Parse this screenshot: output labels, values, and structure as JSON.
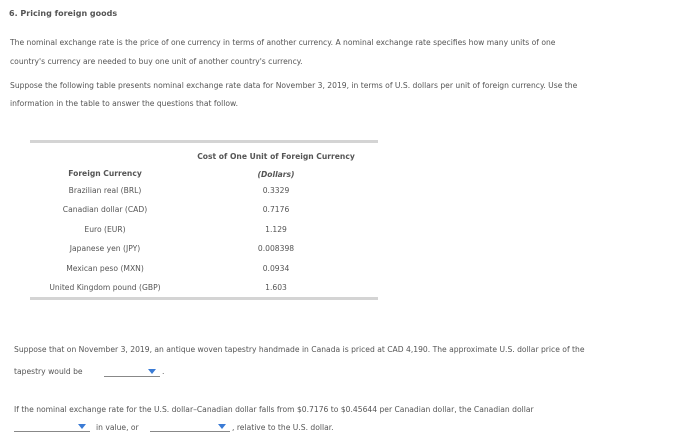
{
  "heading": "6. Pricing foreign goods",
  "intro": {
    "lines": [
      "The nominal exchange rate is the price of one currency in terms of another currency. A nominal exchange rate specifies how many units of one",
      "country's currency are needed to buy one unit of another country's currency."
    ]
  },
  "setup": {
    "lines": [
      "Suppose the following table presents nominal exchange rate data for November 3, 2019, in terms of U.S. dollars per unit of foreign currency. Use the",
      "information in the table to answer the questions that follow."
    ]
  },
  "table": {
    "header": [
      "Foreign Currency",
      "Cost of One Unit of Foreign Currency"
    ],
    "subheader": "(Dollars)",
    "rows": [
      [
        "Brazilian real (BRL)",
        "0.3329"
      ],
      [
        "Canadian dollar (CAD)",
        "0.7176"
      ],
      [
        "Euro (EUR)",
        "1.129"
      ],
      [
        "Japanese yen (JPY)",
        "0.008398"
      ],
      [
        "Mexican peso (MXN)",
        "0.0934"
      ],
      [
        "United Kingdom pound (GBP)",
        "1.603"
      ]
    ]
  },
  "question1": {
    "lines": [
      "Suppose that on November 3, 2019, an antique woven tapestry handmade in Canada is priced at CAD 4,190. The approximate U.S. dollar price of the",
      "tapestry would be"
    ],
    "end": "."
  },
  "question2": {
    "line": "If the nominal exchange rate for the U.S. dollar–Canadian dollar falls from $0.7176 to $0.45644 per Canadian dollar, the Canadian dollar",
    "middle": "in value, or",
    "end": ", relative to the U.S. dollar."
  }
}
